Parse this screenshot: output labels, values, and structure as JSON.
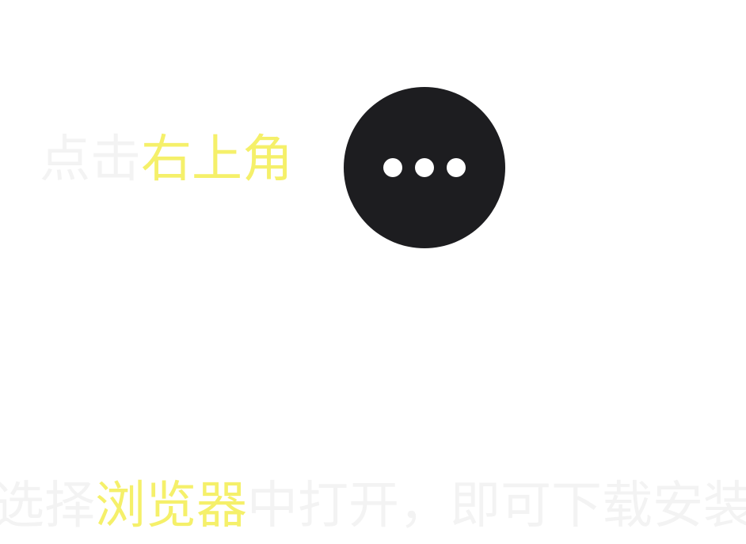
{
  "instruction_line_1": {
    "faint_prefix": "点击",
    "highlight": "右上角"
  },
  "instruction_line_2": {
    "faint_prefix": "选择",
    "highlight": "浏览器",
    "faint_suffix": "中打开，即可下载安装"
  },
  "more_button": {
    "icon": "more-horizontal-icon",
    "background_color": "#1d1d20",
    "dot_color": "#ffffff"
  },
  "colors": {
    "highlight": "#f5f06a",
    "faint_text": "#f3f3f3",
    "background": "#ffffff"
  }
}
